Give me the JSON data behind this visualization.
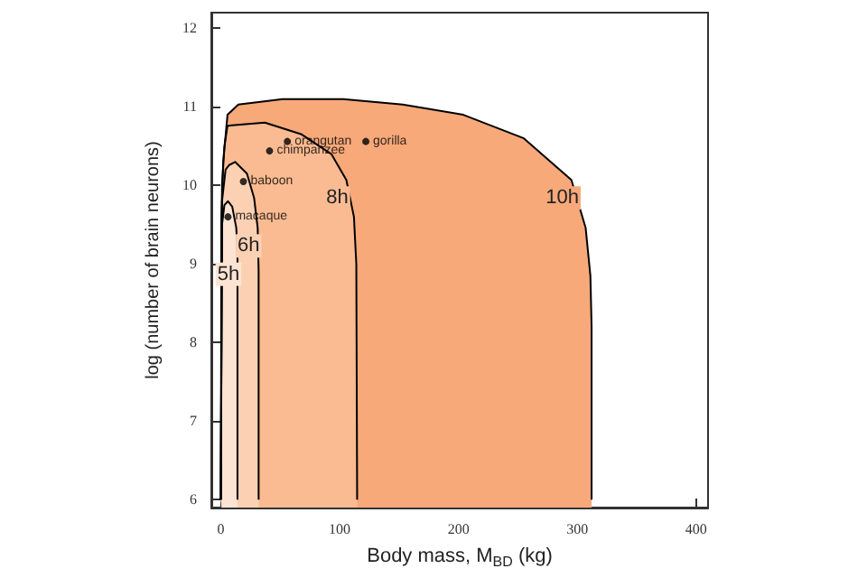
{
  "chart_data": {
    "type": "area",
    "xlabel": "Body mass, M$_{BD}$ (kg)",
    "ylabel": "log (number of brain neurons)",
    "xlim": [
      -8,
      410
    ],
    "xticks": [
      0,
      100,
      200,
      300,
      400
    ],
    "ylim": [
      5.9,
      12.2
    ],
    "yticks": [
      6,
      7,
      8,
      9,
      10,
      11,
      12
    ],
    "grid": false,
    "legend": false,
    "series": [
      {
        "name": "10h",
        "color": "#f7a97a",
        "x": [
          0,
          0.5,
          2,
          5.6,
          14.7,
          52,
          103,
          153,
          204,
          255,
          295,
          307,
          311,
          312,
          312
        ],
        "values": [
          6,
          9.6,
          10.3,
          10.9,
          11.03,
          11.1,
          11.1,
          11.03,
          10.9,
          10.6,
          10.07,
          9.46,
          8.85,
          8.2,
          6
        ]
      },
      {
        "name": "8h",
        "color": "#fabb92",
        "x": [
          0,
          1,
          3,
          5.6,
          37,
          68,
          93,
          105.6,
          112,
          114,
          114.7
        ],
        "values": [
          6,
          10.0,
          10.5,
          10.76,
          10.8,
          10.65,
          10.4,
          10.07,
          9.6,
          9.0,
          6
        ]
      },
      {
        "name": "6h",
        "color": "#fcd0b2",
        "x": [
          0,
          1,
          4,
          7,
          12,
          22,
          28,
          31,
          31.8,
          31.8
        ],
        "values": [
          6,
          9.8,
          10.2,
          10.26,
          10.3,
          10.15,
          9.84,
          9.46,
          8.9,
          6
        ]
      },
      {
        "name": "5h",
        "color": "#fde4d2",
        "x": [
          0,
          1,
          3,
          6,
          9.6,
          13,
          14,
          14
        ],
        "values": [
          6,
          9.5,
          9.75,
          9.8,
          9.73,
          9.46,
          9.1,
          6
        ]
      },
      {
        "type": "scatter",
        "color": "#000000",
        "marker": "circle",
        "x": [
          6,
          19,
          41,
          56,
          122
        ],
        "values": [
          9.6,
          10.05,
          10.44,
          10.56,
          10.56
        ],
        "value_labels": [
          "macaque",
          "baboon",
          "chimpanzee",
          "orangutan",
          "gorilla"
        ]
      }
    ]
  }
}
